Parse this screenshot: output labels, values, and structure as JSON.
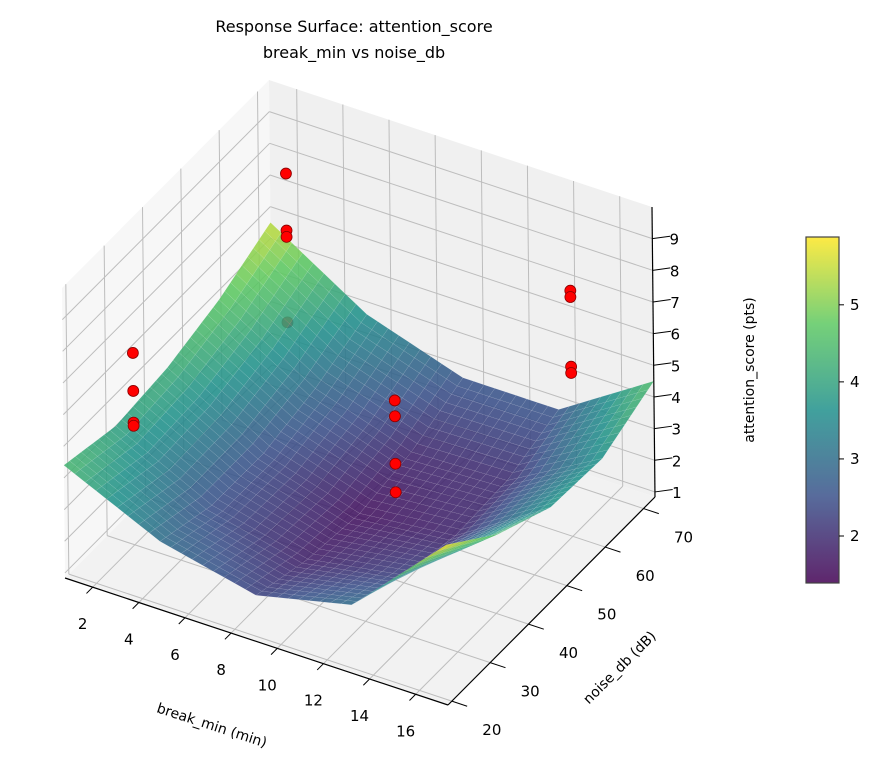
{
  "chart_data": {
    "type": "surface3d",
    "title": "Response Surface: attention_score",
    "subtitle": "break_min vs noise_db",
    "xlabel": "break_min (min)",
    "ylabel": "noise_db (dB)",
    "zlabel": "attention_score (pts)",
    "xlim": [
      0.8,
      17.4
    ],
    "ylim": [
      19,
      73
    ],
    "zlim": [
      0.84,
      10.0
    ],
    "xticks": [
      "2",
      "4",
      "6",
      "8",
      "10",
      "12",
      "14",
      "16"
    ],
    "yticks": [
      "20",
      "30",
      "40",
      "50",
      "60",
      "70"
    ],
    "zticks": [
      "1",
      "2",
      "3",
      "4",
      "5",
      "6",
      "7",
      "8",
      "9"
    ],
    "grid": true,
    "colormap": "viridis",
    "colorbar": {
      "range": [
        1.39,
        5.88
      ],
      "ticks": [
        "2",
        "3",
        "4",
        "5"
      ]
    },
    "surface": {
      "x": [
        0.8,
        4.95,
        9.1,
        13.25,
        17.4
      ],
      "y": [
        19,
        32.5,
        46,
        59.5,
        73
      ],
      "z": [
        [
          4.4,
          3.0,
          2.3,
          3.0,
          5.9
        ],
        [
          4.0,
          2.5,
          1.8,
          2.3,
          4.6
        ],
        [
          4.2,
          2.5,
          1.6,
          1.9,
          3.8
        ],
        [
          4.7,
          2.9,
          1.9,
          2.0,
          3.7
        ],
        [
          5.5,
          3.6,
          2.6,
          2.6,
          4.5
        ]
      ]
    },
    "points": [
      {
        "x": 2,
        "y": 30,
        "z": 6.9
      },
      {
        "x": 2,
        "y": 30,
        "z": 5.7
      },
      {
        "x": 2,
        "y": 30,
        "z": 4.7
      },
      {
        "x": 2,
        "y": 30,
        "z": 4.6
      },
      {
        "x": 2,
        "y": 70,
        "z": 7.7
      },
      {
        "x": 2,
        "y": 70,
        "z": 5.9
      },
      {
        "x": 2,
        "y": 70,
        "z": 5.7
      },
      {
        "x": 2,
        "y": 70,
        "z": 3.0
      },
      {
        "x": 10,
        "y": 50,
        "z": 4.9
      },
      {
        "x": 10,
        "y": 50,
        "z": 4.4
      },
      {
        "x": 10,
        "y": 50,
        "z": 2.9
      },
      {
        "x": 10,
        "y": 50,
        "z": 2.0
      },
      {
        "x": 16,
        "y": 60,
        "z": 8.6
      },
      {
        "x": 16,
        "y": 60,
        "z": 8.4
      },
      {
        "x": 16,
        "y": 60,
        "z": 6.2
      },
      {
        "x": 16,
        "y": 60,
        "z": 6.0
      }
    ],
    "point_color": "#ff0000"
  }
}
